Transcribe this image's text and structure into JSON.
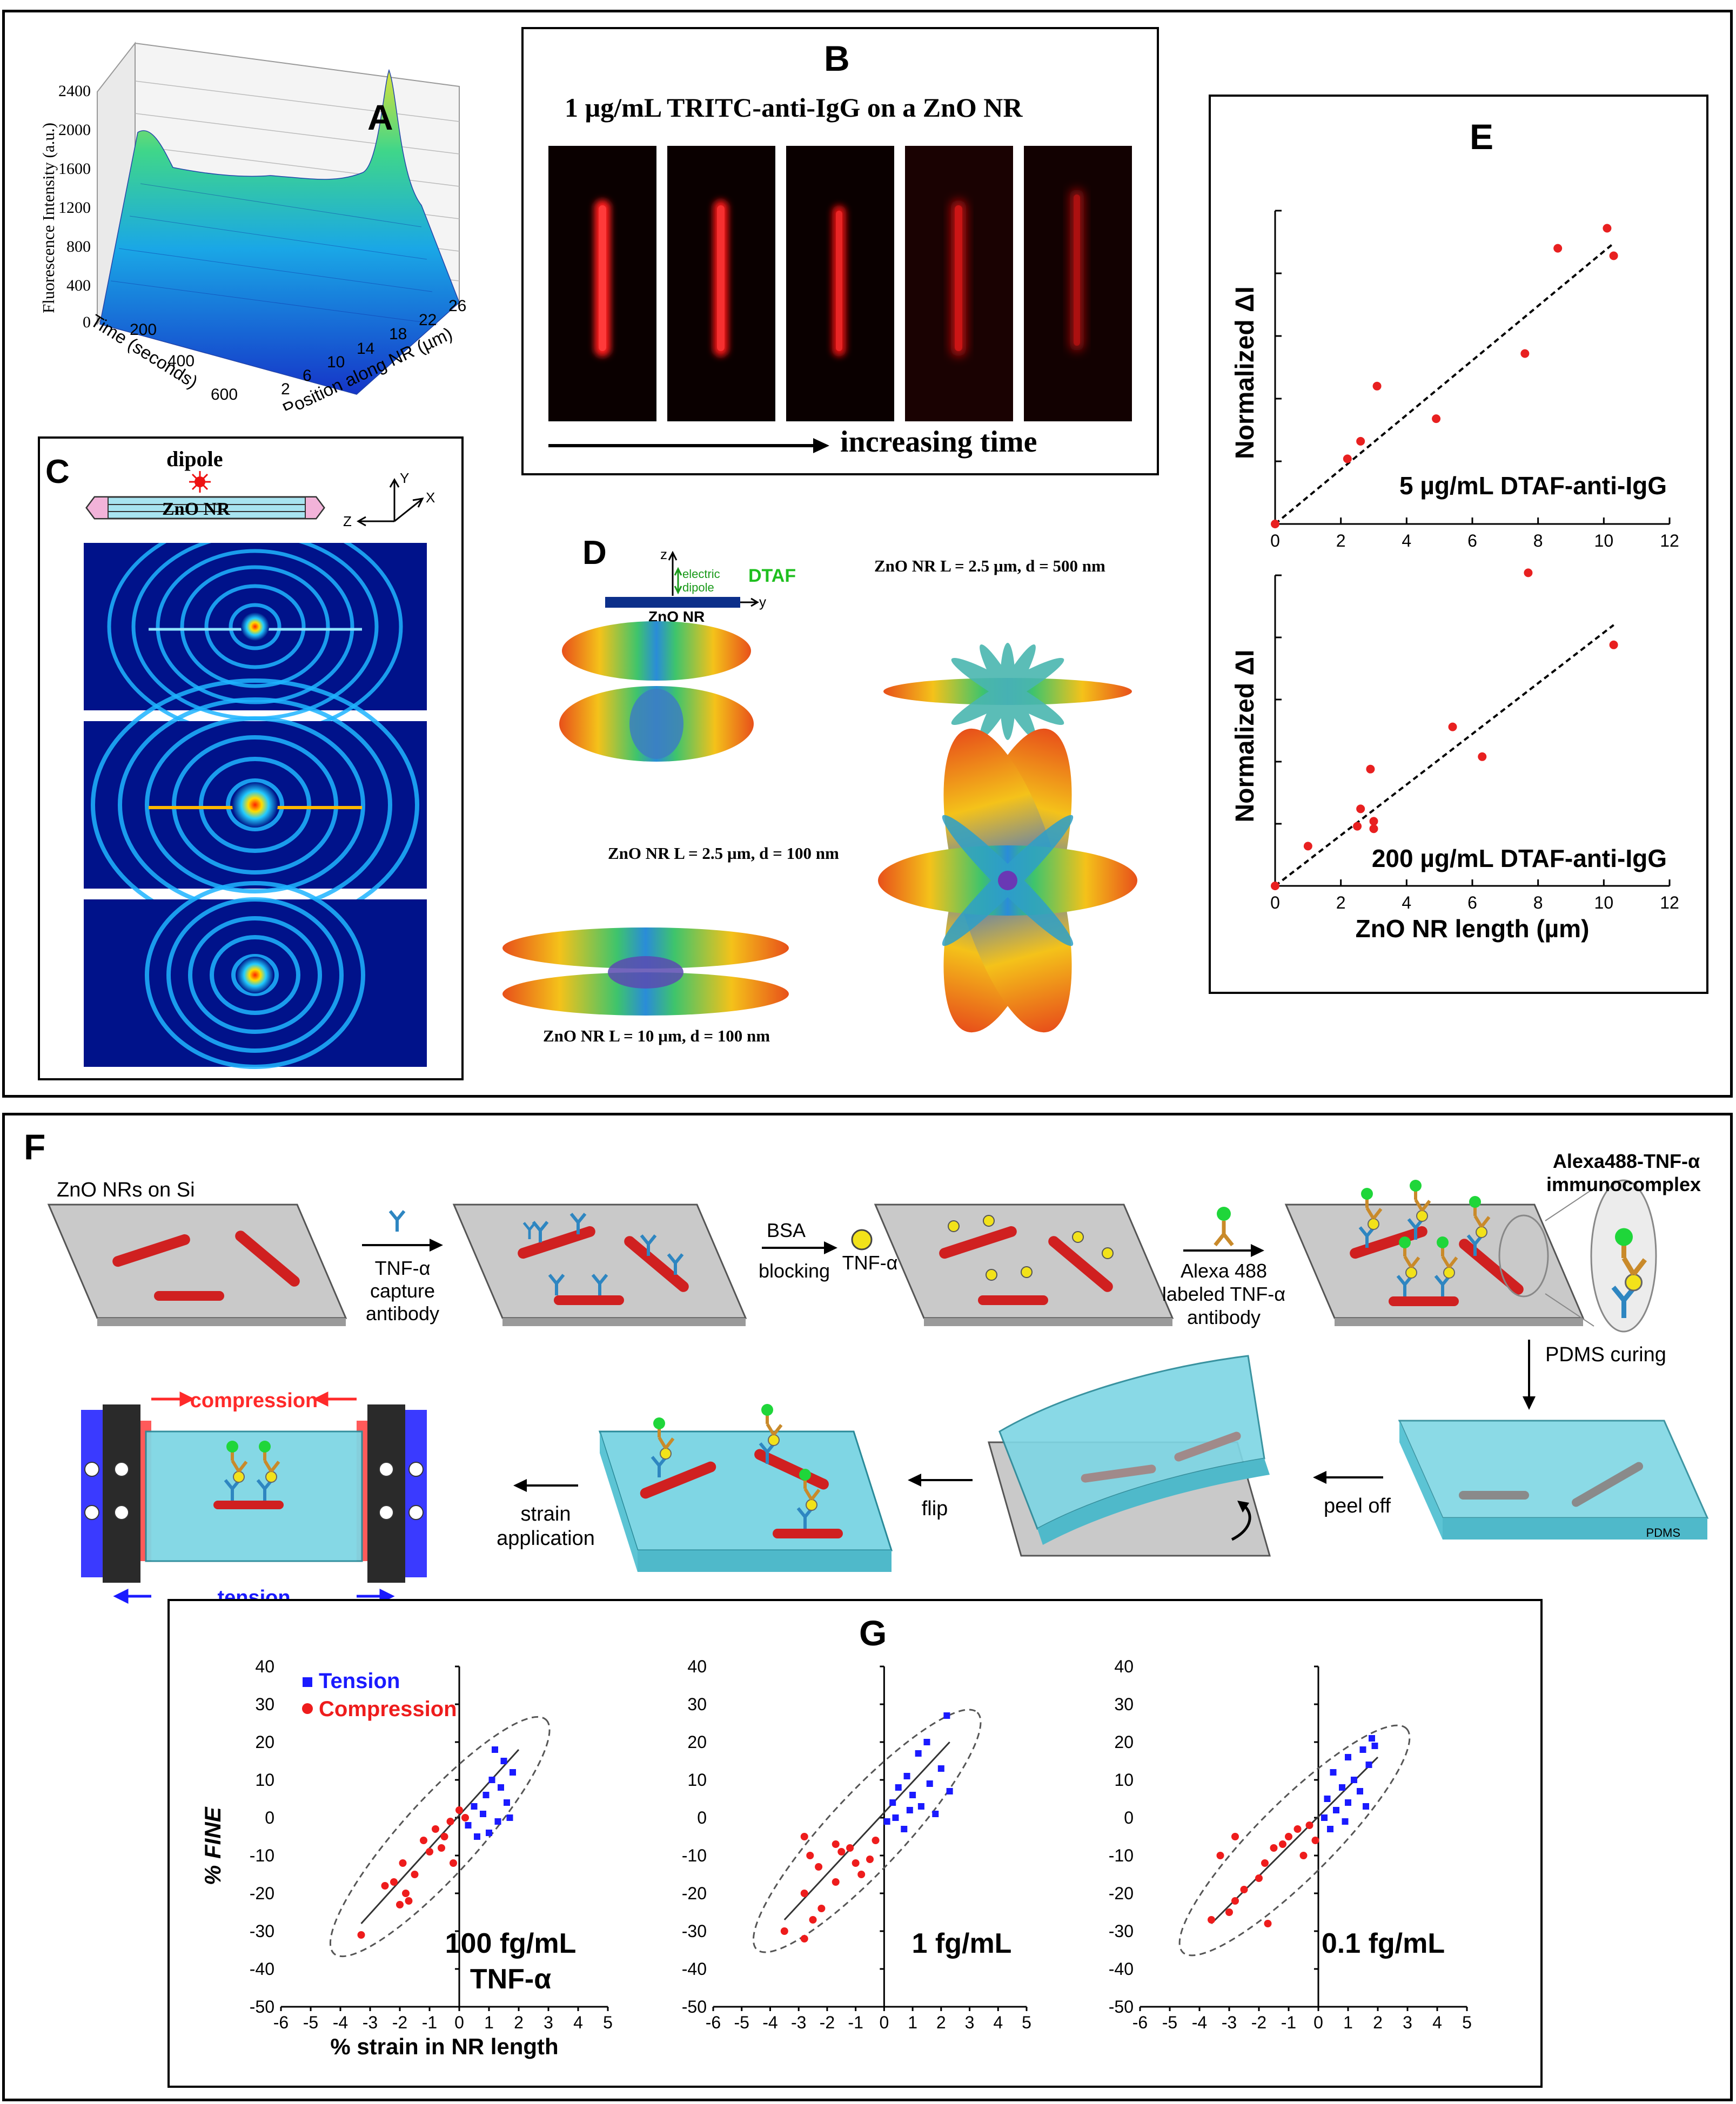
{
  "top_panel": {
    "A": {
      "letter": "A",
      "z_label": "Fluorescence Intensity (a.u.)",
      "z_ticks": [
        "0",
        "400",
        "800",
        "1200",
        "1600",
        "2000",
        "2400"
      ],
      "time_label": "Time (seconds)",
      "time_ticks": [
        "200",
        "400",
        "600"
      ],
      "pos_label": "Position along NR (µm)",
      "pos_ticks": [
        "2",
        "6",
        "10",
        "14",
        "18",
        "22",
        "26"
      ]
    },
    "B": {
      "letter": "B",
      "caption": "1 µg/mL TRITC-anti-IgG  on a ZnO NR",
      "arrow_label": "increasing time"
    },
    "C": {
      "letter": "C",
      "dipole_label": "dipole",
      "nr_label": "ZnO NR",
      "axis_y": "Y",
      "axis_z": "Z",
      "axis_x": "X"
    },
    "D": {
      "letter": "D",
      "axis_z": "z",
      "axis_y": "y",
      "dipole_label_1": "electric",
      "dipole_label_2": "dipole",
      "dtaf": "DTAF",
      "nr_label": "ZnO NR",
      "caption_top_right": "ZnO NR L = 2.5 µm, d = 500 nm",
      "caption_mid_left": "ZnO NR L = 2.5 µm, d = 100 nm",
      "caption_bottom_left": "ZnO NR L = 10 µm, d = 100 nm"
    }
  },
  "F_panel": {
    "letter": "F",
    "step_labels": {
      "start": "ZnO NRs on Si",
      "capture_1": "TNF-α",
      "capture_2": "capture",
      "capture_3": "antibody",
      "bsa_1": "BSA",
      "bsa_2": "blocking",
      "tnf": "TNF-α",
      "alexa_1": "Alexa 488",
      "alexa_2": "labeled TNF-α",
      "alexa_3": "antibody",
      "immuno_1": "Alexa488-TNF-α",
      "immuno_2": "immunocomplex",
      "pdms_curing": "PDMS curing",
      "peel_off": "peel off",
      "flip": "flip",
      "strain_1": "strain",
      "strain_2": "application",
      "compression": "compression",
      "tension": "tension",
      "pdms": "PDMS"
    }
  },
  "colors": {
    "red": "#d81e1e",
    "blue": "#1a1aff",
    "cyan": "#5ccfe0",
    "gray": "#c8c8c8",
    "green": "#22aa22"
  },
  "chart_data": [
    {
      "id": "E_top",
      "type": "scatter",
      "panel": "E",
      "ylabel": "Normalized ΔI",
      "annotation": "5 µg/mL DTAF-anti-IgG",
      "xlim": [
        0,
        12
      ],
      "ylim": [
        0,
        1.25
      ],
      "x_ticks": [
        "0",
        "2",
        "4",
        "6",
        "8",
        "10",
        "12"
      ],
      "points": [
        [
          0,
          0
        ],
        [
          2.2,
          0.26
        ],
        [
          2.6,
          0.33
        ],
        [
          3.1,
          0.55
        ],
        [
          4.9,
          0.42
        ],
        [
          7.6,
          0.68
        ],
        [
          8.6,
          1.1
        ],
        [
          10.1,
          1.18
        ],
        [
          10.3,
          1.07
        ]
      ],
      "fit": [
        [
          0,
          0
        ],
        [
          10.3,
          1.12
        ]
      ]
    },
    {
      "id": "E_bottom",
      "type": "scatter",
      "panel": "E",
      "ylabel": "Normalized ΔI",
      "annotation": "200 µg/mL DTAF-anti-IgG",
      "xlabel": "ZnO NR length (µm)",
      "xlim": [
        0,
        12
      ],
      "ylim": [
        0,
        1.25
      ],
      "x_ticks": [
        "0",
        "2",
        "4",
        "6",
        "8",
        "10",
        "12"
      ],
      "points": [
        [
          0,
          0
        ],
        [
          1,
          0.16
        ],
        [
          2.5,
          0.24
        ],
        [
          2.6,
          0.31
        ],
        [
          2.9,
          0.47
        ],
        [
          3.0,
          0.26
        ],
        [
          3.0,
          0.23
        ],
        [
          5.4,
          0.64
        ],
        [
          6.3,
          0.52
        ],
        [
          7.7,
          1.26
        ],
        [
          10.3,
          0.97
        ]
      ],
      "fit": [
        [
          0,
          0
        ],
        [
          10.3,
          1.05
        ]
      ]
    },
    {
      "id": "G1",
      "type": "scatter",
      "panel": "G",
      "letter": "G",
      "legend": [
        "Tension",
        "Compression"
      ],
      "ylabel": "% FINE",
      "xlabel": "% strain in NR length",
      "annotation_1": "100 fg/mL",
      "annotation_2": "TNF-α",
      "xlim": [
        -6,
        5
      ],
      "ylim": [
        -50,
        40
      ],
      "x_ticks": [
        "-6",
        "-5",
        "-4",
        "-3",
        "-2",
        "-1",
        "0",
        "1",
        "2",
        "3",
        "4",
        "5"
      ],
      "y_ticks": [
        "40",
        "30",
        "20",
        "10",
        "0",
        "-10",
        "-20",
        "-30",
        "-40",
        "-50"
      ],
      "tension": [
        [
          1.2,
          18
        ],
        [
          1.5,
          15
        ],
        [
          1.8,
          12
        ],
        [
          1.1,
          10
        ],
        [
          1.4,
          8
        ],
        [
          0.9,
          6
        ],
        [
          1.6,
          4
        ],
        [
          0.5,
          3
        ],
        [
          0.8,
          1
        ],
        [
          1.7,
          0
        ],
        [
          0.3,
          -2
        ],
        [
          1.0,
          -4
        ],
        [
          0.6,
          -5
        ],
        [
          1.3,
          -1
        ]
      ],
      "compression": [
        [
          -3.3,
          -31
        ],
        [
          -2.0,
          -23
        ],
        [
          -1.8,
          -20
        ],
        [
          -2.2,
          -17
        ],
        [
          -1.5,
          -15
        ],
        [
          -1.9,
          -12
        ],
        [
          -1.0,
          -9
        ],
        [
          -1.2,
          -6
        ],
        [
          -0.5,
          -5
        ],
        [
          -0.8,
          -3
        ],
        [
          -0.3,
          -1
        ],
        [
          0.0,
          2
        ],
        [
          -0.6,
          -8
        ],
        [
          -2.5,
          -18
        ],
        [
          -1.7,
          -22
        ],
        [
          0.2,
          0
        ],
        [
          -0.2,
          -12
        ]
      ],
      "fit": [
        [
          -3.3,
          -28
        ],
        [
          2.0,
          18
        ]
      ]
    },
    {
      "id": "G2",
      "type": "scatter",
      "panel": "G",
      "annotation_1": "1 fg/mL",
      "xlim": [
        -6,
        5
      ],
      "ylim": [
        -50,
        40
      ],
      "x_ticks": [
        "-6",
        "-5",
        "-4",
        "-3",
        "-2",
        "-1",
        "0",
        "1",
        "2",
        "3",
        "4",
        "5"
      ],
      "y_ticks": [
        "40",
        "30",
        "20",
        "10",
        "0",
        "-10",
        "-20",
        "-30",
        "-40",
        "-50"
      ],
      "tension": [
        [
          2.2,
          27
        ],
        [
          1.5,
          20
        ],
        [
          1.2,
          17
        ],
        [
          2.0,
          13
        ],
        [
          0.8,
          11
        ],
        [
          1.6,
          9
        ],
        [
          0.5,
          8
        ],
        [
          1.0,
          6
        ],
        [
          2.3,
          7
        ],
        [
          0.3,
          4
        ],
        [
          1.3,
          3
        ],
        [
          0.9,
          2
        ],
        [
          0.4,
          0
        ],
        [
          1.8,
          1
        ],
        [
          0.1,
          -1
        ],
        [
          0.7,
          -3
        ]
      ],
      "compression": [
        [
          -3.5,
          -30
        ],
        [
          -2.8,
          -32
        ],
        [
          -2.5,
          -27
        ],
        [
          -2.2,
          -24
        ],
        [
          -2.8,
          -20
        ],
        [
          -1.7,
          -17
        ],
        [
          -2.3,
          -13
        ],
        [
          -1.0,
          -12
        ],
        [
          -0.8,
          -15
        ],
        [
          -1.5,
          -9
        ],
        [
          -2.8,
          -5
        ],
        [
          -1.2,
          -8
        ],
        [
          -0.5,
          -11
        ],
        [
          -1.7,
          -7
        ],
        [
          -0.3,
          -6
        ],
        [
          -2.6,
          -10
        ]
      ],
      "fit": [
        [
          -3.5,
          -27
        ],
        [
          2.3,
          20
        ]
      ]
    },
    {
      "id": "G3",
      "type": "scatter",
      "panel": "G",
      "annotation_1": "0.1 fg/mL",
      "xlim": [
        -6,
        5
      ],
      "ylim": [
        -50,
        40
      ],
      "x_ticks": [
        "-6",
        "-5",
        "-4",
        "-3",
        "-2",
        "-1",
        "0",
        "1",
        "2",
        "3",
        "4",
        "5"
      ],
      "y_ticks": [
        "40",
        "30",
        "20",
        "10",
        "0",
        "-10",
        "-20",
        "-30",
        "-40",
        "-50"
      ],
      "tension": [
        [
          1.8,
          21
        ],
        [
          1.5,
          18
        ],
        [
          1.0,
          16
        ],
        [
          1.7,
          14
        ],
        [
          0.5,
          12
        ],
        [
          1.2,
          10
        ],
        [
          0.8,
          8
        ],
        [
          1.4,
          7
        ],
        [
          0.3,
          5
        ],
        [
          1.0,
          4
        ],
        [
          0.6,
          2
        ],
        [
          1.6,
          3
        ],
        [
          0.2,
          0
        ],
        [
          0.9,
          -1
        ],
        [
          0.4,
          -3
        ],
        [
          1.9,
          19
        ]
      ],
      "compression": [
        [
          -3.6,
          -27
        ],
        [
          -3.0,
          -25
        ],
        [
          -2.8,
          -22
        ],
        [
          -2.5,
          -19
        ],
        [
          -2.0,
          -16
        ],
        [
          -1.8,
          -12
        ],
        [
          -3.3,
          -10
        ],
        [
          -1.5,
          -8
        ],
        [
          -1.0,
          -5
        ],
        [
          -0.7,
          -3
        ],
        [
          -0.3,
          -2
        ],
        [
          -2.8,
          -5
        ],
        [
          -1.2,
          -7
        ],
        [
          -0.5,
          -10
        ],
        [
          -1.7,
          -28
        ],
        [
          -0.1,
          -6
        ]
      ],
      "fit": [
        [
          -3.6,
          -28
        ],
        [
          2.0,
          16
        ]
      ]
    }
  ]
}
